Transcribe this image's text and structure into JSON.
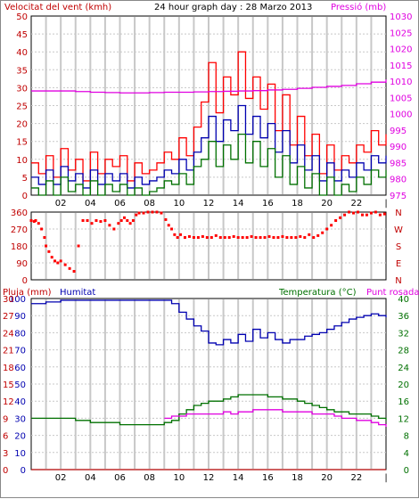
{
  "header": {
    "wind_title": "Velocitat del vent (kmh)",
    "date_title": "24 hour graph day : 28 Marzo 2013",
    "pressure_title": "Pressió (mb)"
  },
  "bottom_header": {
    "rain_label": "Pluja (mm)",
    "humidity_label": "Humitat",
    "temperature_label": "Temperatura (°C)",
    "dewpoint_label": "Punt rosada"
  },
  "colors": {
    "gust": "#ff0000",
    "wind_avg": "#0000b0",
    "wind_min": "#007000",
    "pressure": "#e000e0",
    "direction": "#ff0000",
    "humidity": "#0000b0",
    "temperature": "#007000",
    "dewpoint": "#e000e0",
    "rain": "#b00000",
    "grid": "#c8c8c8"
  },
  "chart_data": [
    {
      "type": "line",
      "name": "wind-pressure",
      "x_unit": "hour",
      "xlim": [
        0,
        24
      ],
      "x_ticks": [
        "02",
        "04",
        "06",
        "08",
        "10",
        "12",
        "14",
        "16",
        "18",
        "20",
        "22",
        "|"
      ],
      "x_tick_hours": [
        2,
        4,
        6,
        8,
        10,
        12,
        14,
        16,
        18,
        20,
        22,
        24
      ],
      "ylim_left": [
        0,
        50
      ],
      "y_ticks_left": [
        "0",
        "5",
        "10",
        "15",
        "20",
        "25",
        "30",
        "35",
        "40",
        "45",
        "50"
      ],
      "ylim_right": [
        975,
        1030
      ],
      "y_ticks_right": [
        "975",
        "980",
        "985",
        "990",
        "995",
        "1000",
        "1005",
        "1010",
        "1015",
        "1020",
        "1025",
        "1030"
      ],
      "grid": true,
      "series": [
        {
          "axis": "left",
          "x": [
            0,
            0.5,
            1,
            1.5,
            2,
            2.5,
            3,
            3.5,
            4,
            4.5,
            5,
            5.5,
            6,
            6.5,
            7,
            7.5,
            8,
            8.5,
            9,
            9.5,
            10,
            10.5,
            11,
            11.5,
            12,
            12.5,
            13,
            13.5,
            14,
            14.5,
            15,
            15.5,
            16,
            16.5,
            17,
            17.5,
            18,
            18.5,
            19,
            19.5,
            20,
            20.5,
            21,
            21.5,
            22,
            22.5,
            23,
            23.5,
            24
          ],
          "values": [
            9,
            6,
            11,
            5,
            13,
            7,
            10,
            4,
            12,
            6,
            10,
            8,
            11,
            4,
            9,
            6,
            7,
            9,
            12,
            10,
            16,
            11,
            19,
            26,
            37,
            23,
            33,
            28,
            40,
            27,
            33,
            24,
            31,
            18,
            28,
            14,
            22,
            11,
            17,
            6,
            14,
            7,
            11,
            9,
            14,
            12,
            18,
            14,
            17
          ]
        },
        {
          "axis": "left",
          "x": [
            0,
            0.5,
            1,
            1.5,
            2,
            2.5,
            3,
            3.5,
            4,
            4.5,
            5,
            5.5,
            6,
            6.5,
            7,
            7.5,
            8,
            8.5,
            9,
            9.5,
            10,
            10.5,
            11,
            11.5,
            12,
            12.5,
            13,
            13.5,
            14,
            14.5,
            15,
            15.5,
            16,
            16.5,
            17,
            17.5,
            18,
            18.5,
            19,
            19.5,
            20,
            20.5,
            21,
            21.5,
            22,
            22.5,
            23,
            23.5,
            24
          ],
          "values": [
            5,
            3,
            7,
            3,
            8,
            4,
            6,
            2,
            7,
            3,
            6,
            4,
            6,
            2,
            5,
            3,
            4,
            5,
            7,
            6,
            10,
            7,
            12,
            16,
            22,
            15,
            21,
            18,
            25,
            17,
            22,
            16,
            20,
            12,
            18,
            9,
            14,
            7,
            11,
            4,
            9,
            4,
            7,
            5,
            9,
            7,
            11,
            9,
            11
          ]
        },
        {
          "axis": "left",
          "x": [
            0,
            0.5,
            1,
            1.5,
            2,
            2.5,
            3,
            3.5,
            4,
            4.5,
            5,
            5.5,
            6,
            6.5,
            7,
            7.5,
            8,
            8.5,
            9,
            9.5,
            10,
            10.5,
            11,
            11.5,
            12,
            12.5,
            13,
            13.5,
            14,
            14.5,
            15,
            15.5,
            16,
            16.5,
            17,
            17.5,
            18,
            18.5,
            19,
            19.5,
            20,
            20.5,
            21,
            21.5,
            22,
            22.5,
            23,
            23.5,
            24
          ],
          "values": [
            2,
            0,
            4,
            0,
            5,
            1,
            3,
            0,
            4,
            0,
            3,
            1,
            3,
            0,
            2,
            0,
            1,
            2,
            4,
            3,
            6,
            3,
            8,
            10,
            15,
            8,
            14,
            10,
            17,
            9,
            15,
            8,
            13,
            5,
            11,
            3,
            8,
            2,
            6,
            0,
            5,
            0,
            3,
            1,
            5,
            3,
            7,
            5,
            7
          ]
        },
        {
          "axis": "right",
          "x": [
            0,
            1,
            2,
            3,
            4,
            5,
            6,
            7,
            8,
            9,
            10,
            11,
            12,
            13,
            14,
            15,
            16,
            17,
            18,
            19,
            20,
            21,
            22,
            23,
            24
          ],
          "values": [
            1007,
            1007,
            1007,
            1006.8,
            1006.6,
            1006.5,
            1006.4,
            1006.4,
            1006.5,
            1006.6,
            1006.6,
            1006.7,
            1006.8,
            1006.9,
            1007,
            1007.1,
            1007.3,
            1007.5,
            1007.8,
            1008.1,
            1008.4,
            1008.7,
            1009.2,
            1009.7,
            1010.5
          ]
        }
      ]
    },
    {
      "type": "scatter",
      "name": "wind-direction",
      "xlim": [
        0,
        24
      ],
      "ylim": [
        0,
        360
      ],
      "y_ticks": [
        "0",
        "90",
        "180",
        "270",
        "360"
      ],
      "y_ticks_right": [
        "N",
        "E",
        "S",
        "W",
        "N"
      ],
      "series": [
        {
          "x": [
            0,
            0.2,
            0.3,
            0.5,
            0.7,
            0.9,
            1.0,
            1.2,
            1.4,
            1.6,
            1.8,
            2.0,
            2.3,
            2.6,
            2.9,
            3.2,
            3.5,
            3.8,
            4.1,
            4.4,
            4.7,
            5.0,
            5.3,
            5.6,
            5.9,
            6.1,
            6.3,
            6.5,
            6.7,
            6.9,
            7.1,
            7.3,
            7.6,
            7.9,
            8.2,
            8.5,
            8.8,
            9.1,
            9.3,
            9.5,
            9.7,
            9.9,
            10.1,
            10.4,
            10.7,
            11.0,
            11.3,
            11.6,
            11.9,
            12.2,
            12.5,
            12.8,
            13.1,
            13.4,
            13.7,
            14.0,
            14.3,
            14.6,
            14.9,
            15.2,
            15.5,
            15.8,
            16.1,
            16.4,
            16.7,
            17.0,
            17.3,
            17.6,
            17.9,
            18.2,
            18.5,
            18.8,
            19.1,
            19.4,
            19.7,
            20.0,
            20.3,
            20.6,
            20.9,
            21.2,
            21.5,
            21.8,
            22.1,
            22.4,
            22.7,
            23.0,
            23.3,
            23.6,
            23.9
          ],
          "values": [
            315,
            310,
            315,
            300,
            270,
            225,
            180,
            150,
            120,
            100,
            90,
            100,
            80,
            60,
            45,
            180,
            315,
            315,
            300,
            315,
            310,
            315,
            290,
            270,
            300,
            315,
            330,
            315,
            300,
            315,
            345,
            355,
            355,
            360,
            360,
            360,
            355,
            320,
            290,
            270,
            240,
            225,
            240,
            225,
            230,
            225,
            225,
            230,
            225,
            225,
            235,
            225,
            225,
            225,
            230,
            225,
            225,
            225,
            230,
            225,
            225,
            225,
            230,
            225,
            225,
            230,
            225,
            225,
            225,
            230,
            225,
            240,
            225,
            235,
            250,
            270,
            290,
            315,
            330,
            345,
            360,
            355,
            360,
            345,
            345,
            355,
            360,
            345,
            350
          ]
        }
      ]
    },
    {
      "type": "line",
      "name": "humidity-temperature-rain",
      "xlim": [
        0,
        24
      ],
      "x_ticks": [
        "02",
        "04",
        "06",
        "08",
        "10",
        "12",
        "14",
        "16",
        "18",
        "20",
        "22",
        "|"
      ],
      "x_tick_hours": [
        2,
        4,
        6,
        8,
        10,
        12,
        14,
        16,
        18,
        20,
        22,
        24
      ],
      "y_ticks_rain": [
        "0",
        "3",
        "6",
        "9",
        "12",
        "15",
        "18",
        "21",
        "24",
        "27",
        "30"
      ],
      "y_ticks_humidity": [
        "0",
        "10",
        "20",
        "30",
        "40",
        "50",
        "60",
        "70",
        "80",
        "90",
        "100"
      ],
      "y_ticks_temperature": [
        "0",
        "4",
        "8",
        "12",
        "16",
        "20",
        "24",
        "28",
        "32",
        "36",
        "40"
      ],
      "ylim_humidity": [
        0,
        100
      ],
      "ylim_temperature": [
        0,
        40
      ],
      "ylim_rain": [
        0,
        30
      ],
      "series": [
        {
          "axis": "humidity",
          "x": [
            0,
            1,
            2,
            3,
            4,
            5,
            6,
            7,
            8,
            8.5,
            9,
            9.5,
            10,
            10.5,
            11,
            11.5,
            12,
            12.5,
            13,
            13.5,
            14,
            14.5,
            15,
            15.5,
            16,
            16.5,
            17,
            17.5,
            18,
            18.5,
            19,
            19.5,
            20,
            20.5,
            21,
            21.5,
            22,
            22.5,
            23,
            23.5,
            24
          ],
          "values": [
            97,
            98,
            99,
            99,
            99,
            99,
            99,
            99,
            99,
            99,
            99,
            97,
            92,
            88,
            84,
            81,
            74,
            73,
            76,
            74,
            79,
            75,
            82,
            77,
            80,
            76,
            74,
            76,
            76,
            78,
            79,
            80,
            82,
            84,
            86,
            88,
            89,
            90,
            91,
            90,
            89
          ]
        },
        {
          "axis": "temperature",
          "x": [
            0,
            1,
            2,
            3,
            4,
            5,
            6,
            7,
            8,
            8.5,
            9,
            9.5,
            10,
            10.5,
            11,
            11.5,
            12,
            12.5,
            13,
            13.5,
            14,
            14.5,
            15,
            15.5,
            16,
            16.5,
            17,
            17.5,
            18,
            18.5,
            19,
            19.5,
            20,
            20.5,
            21,
            21.5,
            22,
            22.5,
            23,
            23.5,
            24
          ],
          "values": [
            12,
            12,
            12,
            11.5,
            11,
            11,
            10.5,
            10.5,
            10.5,
            10.5,
            11,
            11.5,
            13,
            14,
            15,
            15.5,
            16,
            16,
            16.5,
            17,
            17.5,
            17.5,
            17.5,
            17.5,
            17,
            17,
            16.5,
            16.5,
            16,
            15.5,
            15,
            14.5,
            14,
            13.5,
            13.5,
            13,
            13,
            13,
            12.5,
            12,
            11.5
          ]
        },
        {
          "axis": "temperature",
          "x": [
            9,
            9.5,
            10,
            10.5,
            11,
            11.5,
            12,
            12.5,
            13,
            13.5,
            14,
            14.5,
            15,
            15.5,
            16,
            16.5,
            17,
            17.5,
            18,
            18.5,
            19,
            19.5,
            20,
            20.5,
            21,
            21.5,
            22,
            22.5,
            23,
            23.5,
            24
          ],
          "values": [
            12,
            12.5,
            12.5,
            13,
            13,
            13,
            13,
            13,
            13.5,
            13,
            13.5,
            13.5,
            14,
            14,
            14,
            14,
            13.5,
            13.5,
            13.5,
            13.5,
            13,
            13,
            13,
            12.5,
            12,
            12,
            11.5,
            11.5,
            11,
            10.5,
            10
          ]
        },
        {
          "axis": "rain",
          "x": [
            0,
            24
          ],
          "values": [
            0,
            0
          ]
        }
      ]
    }
  ]
}
